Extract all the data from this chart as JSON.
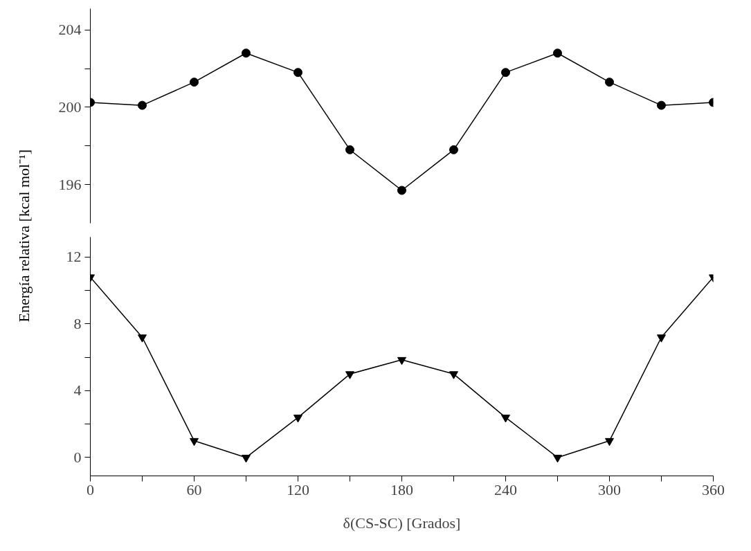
{
  "chart_data": [
    {
      "type": "line",
      "ylabel": "Energía relativa [kcal mol⁻¹]",
      "x": [
        0,
        30,
        60,
        90,
        120,
        150,
        180,
        210,
        240,
        270,
        300,
        330,
        360
      ],
      "series": [
        {
          "color": "#000000",
          "values": [
            200.25,
            200.1,
            201.3,
            202.8,
            201.8,
            197.8,
            195.7,
            197.8,
            201.8,
            202.8,
            201.3,
            200.1,
            200.25
          ]
        }
      ],
      "marker": "circle",
      "xlim": [
        0,
        360
      ],
      "ylim": [
        194,
        205.1
      ],
      "yticks": [
        196,
        {
          "value": 198,
          "label": null
        },
        200,
        {
          "value": 202,
          "label": null
        },
        204
      ],
      "tick_labels": "y",
      "grid": false
    },
    {
      "type": "line",
      "xlabel": "δ(CS-SC) [Grados]",
      "x": [
        0,
        30,
        60,
        90,
        120,
        150,
        180,
        210,
        240,
        270,
        300,
        330,
        360
      ],
      "series": [
        {
          "color": "#000000",
          "values": [
            10.8,
            7.2,
            1.0,
            0,
            2.4,
            5.0,
            5.85,
            5.0,
            2.4,
            0,
            1.0,
            7.2,
            10.8
          ]
        }
      ],
      "marker": "triangle",
      "xlim": [
        0,
        360
      ],
      "ylim": [
        -1.1,
        13.2
      ],
      "xticks": [
        0,
        {
          "value": 30,
          "label": null
        },
        60,
        {
          "value": 90,
          "label": null
        },
        120,
        {
          "value": 150,
          "label": null
        },
        180,
        {
          "value": 210,
          "label": null
        },
        240,
        {
          "value": 270,
          "label": null
        },
        300,
        {
          "value": 330,
          "label": null
        },
        360
      ],
      "yticks": [
        0,
        {
          "value": 2,
          "label": null
        },
        4,
        {
          "value": 6,
          "label": null
        },
        8,
        {
          "value": 10,
          "label": null
        },
        12
      ],
      "grid": false
    }
  ]
}
